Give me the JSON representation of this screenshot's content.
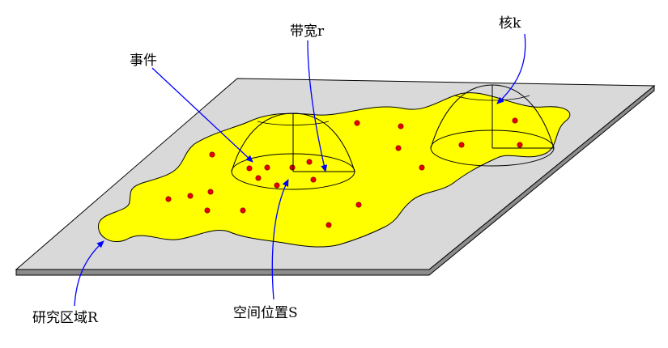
{
  "labels": {
    "event": "事件",
    "bandwidth": "带宽r",
    "kernel": "核k",
    "study_area": "研究区域R",
    "spatial_location": "空间位置S"
  },
  "colors": {
    "plane_face": "#d9d9d9",
    "plane_edge": "#8c8c8c",
    "region_fill": "#ffff00",
    "event_point": "#e60000",
    "arrow": "#0000ff",
    "outline": "#000000"
  },
  "event_count": 22
}
